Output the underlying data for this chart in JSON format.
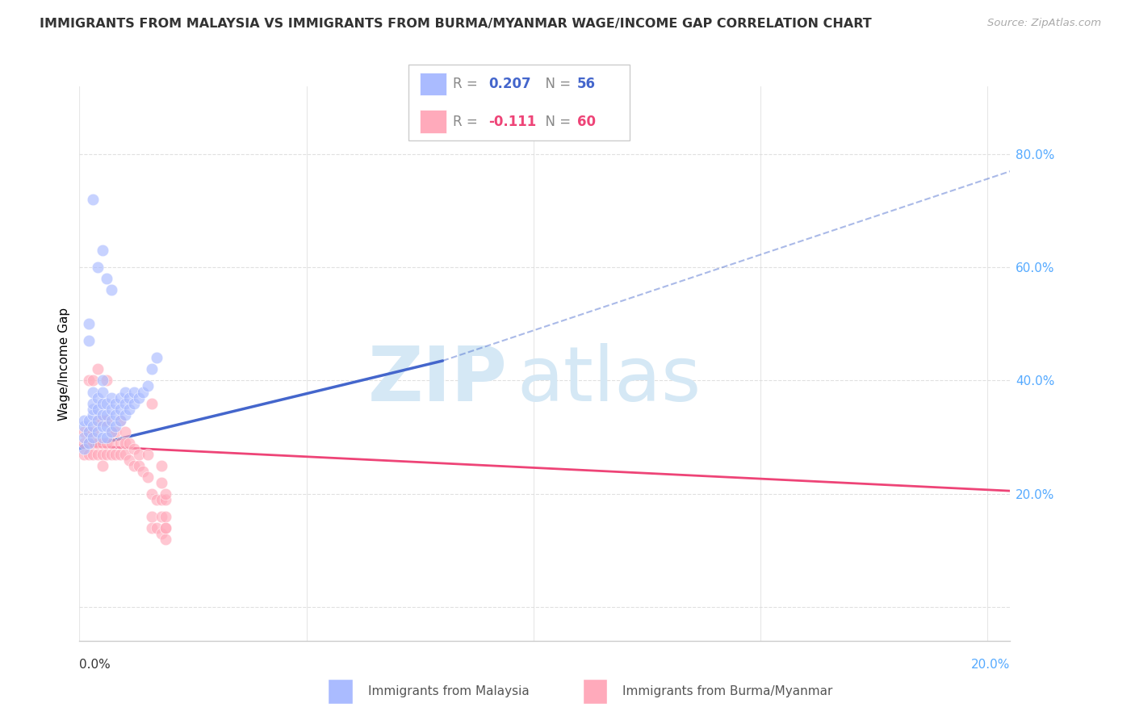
{
  "title": "IMMIGRANTS FROM MALAYSIA VS IMMIGRANTS FROM BURMA/MYANMAR WAGE/INCOME GAP CORRELATION CHART",
  "source": "Source: ZipAtlas.com",
  "ylabel": "Wage/Income Gap",
  "ylim": [
    -0.06,
    0.92
  ],
  "xlim": [
    0.0,
    0.205
  ],
  "yticks": [
    0.0,
    0.2,
    0.4,
    0.6,
    0.8
  ],
  "ytick_labels": [
    "",
    "20.0%",
    "40.0%",
    "60.0%",
    "80.0%"
  ],
  "xtick_left": "0.0%",
  "xtick_right": "20.0%",
  "R_malaysia": "0.207",
  "N_malaysia": "56",
  "R_burma": "-0.111",
  "N_burma": "60",
  "color_malaysia_fill": "#AABBFF",
  "color_malaysia_line": "#4466CC",
  "color_burma_fill": "#FFAABB",
  "color_burma_line": "#EE4477",
  "watermark_zip_color": "#D8E8F8",
  "watermark_atlas_color": "#D0E4F8",
  "grid_color": "#DDDDDD",
  "right_tick_color": "#55AAFF",
  "title_color": "#333333",
  "source_color": "#AAAAAA",
  "legend_border_color": "#CCCCCC",
  "scatter_alpha": 0.65,
  "scatter_size": 110,
  "malaysia_x": [
    0.001,
    0.001,
    0.001,
    0.001,
    0.002,
    0.002,
    0.002,
    0.002,
    0.002,
    0.003,
    0.003,
    0.003,
    0.003,
    0.003,
    0.003,
    0.003,
    0.004,
    0.004,
    0.004,
    0.004,
    0.004,
    0.005,
    0.005,
    0.005,
    0.005,
    0.005,
    0.005,
    0.005,
    0.006,
    0.006,
    0.006,
    0.006,
    0.006,
    0.007,
    0.007,
    0.007,
    0.007,
    0.007,
    0.008,
    0.008,
    0.008,
    0.009,
    0.009,
    0.009,
    0.01,
    0.01,
    0.01,
    0.011,
    0.011,
    0.012,
    0.012,
    0.013,
    0.014,
    0.015,
    0.016,
    0.017
  ],
  "malaysia_y": [
    0.28,
    0.3,
    0.32,
    0.33,
    0.29,
    0.31,
    0.33,
    0.5,
    0.47,
    0.3,
    0.32,
    0.34,
    0.35,
    0.36,
    0.38,
    0.72,
    0.31,
    0.33,
    0.35,
    0.37,
    0.6,
    0.3,
    0.32,
    0.34,
    0.36,
    0.38,
    0.4,
    0.63,
    0.3,
    0.32,
    0.34,
    0.36,
    0.58,
    0.31,
    0.33,
    0.35,
    0.37,
    0.56,
    0.32,
    0.34,
    0.36,
    0.33,
    0.35,
    0.37,
    0.34,
    0.36,
    0.38,
    0.35,
    0.37,
    0.36,
    0.38,
    0.37,
    0.38,
    0.39,
    0.42,
    0.44
  ],
  "burma_x": [
    0.001,
    0.001,
    0.001,
    0.002,
    0.002,
    0.002,
    0.002,
    0.003,
    0.003,
    0.003,
    0.003,
    0.004,
    0.004,
    0.004,
    0.004,
    0.005,
    0.005,
    0.005,
    0.005,
    0.006,
    0.006,
    0.006,
    0.006,
    0.007,
    0.007,
    0.007,
    0.008,
    0.008,
    0.009,
    0.009,
    0.009,
    0.01,
    0.01,
    0.01,
    0.011,
    0.011,
    0.012,
    0.012,
    0.013,
    0.013,
    0.014,
    0.015,
    0.015,
    0.016,
    0.016,
    0.016,
    0.016,
    0.017,
    0.017,
    0.018,
    0.018,
    0.018,
    0.018,
    0.018,
    0.019,
    0.019,
    0.019,
    0.019,
    0.019,
    0.019
  ],
  "burma_y": [
    0.27,
    0.29,
    0.31,
    0.27,
    0.29,
    0.31,
    0.4,
    0.27,
    0.29,
    0.31,
    0.4,
    0.27,
    0.29,
    0.33,
    0.42,
    0.27,
    0.29,
    0.33,
    0.25,
    0.27,
    0.29,
    0.33,
    0.4,
    0.27,
    0.29,
    0.31,
    0.27,
    0.31,
    0.27,
    0.29,
    0.33,
    0.27,
    0.29,
    0.31,
    0.26,
    0.29,
    0.25,
    0.28,
    0.25,
    0.27,
    0.24,
    0.23,
    0.27,
    0.14,
    0.16,
    0.2,
    0.36,
    0.14,
    0.19,
    0.13,
    0.16,
    0.19,
    0.22,
    0.25,
    0.12,
    0.14,
    0.16,
    0.19,
    0.2,
    0.14
  ],
  "trend_malaysia_x0": 0.0,
  "trend_malaysia_y0": 0.28,
  "trend_malaysia_x1": 0.08,
  "trend_malaysia_y1": 0.435,
  "trend_malaysia_xdash_x1": 0.205,
  "trend_malaysia_xdash_y1": 0.77,
  "trend_burma_x0": 0.0,
  "trend_burma_y0": 0.285,
  "trend_burma_x1": 0.205,
  "trend_burma_y1": 0.205
}
